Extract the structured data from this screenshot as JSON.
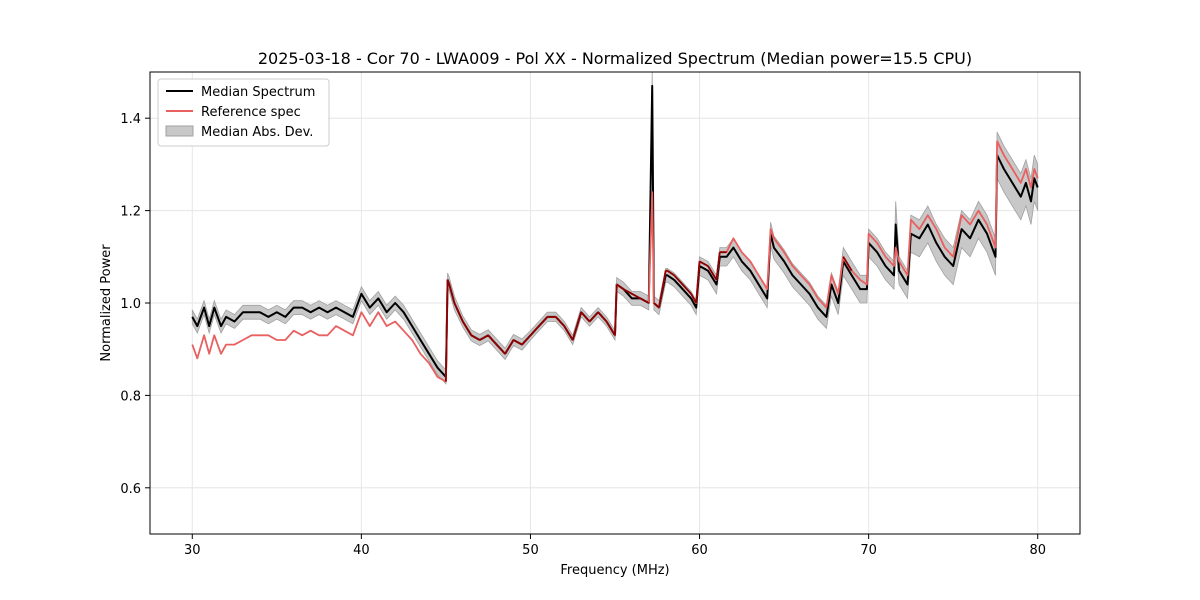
{
  "chart_data": {
    "type": "line",
    "title": "2025-03-18 - Cor 70 - LWA009 - Pol XX - Normalized Spectrum (Median power=15.5 CPU)",
    "xlabel": "Frequency (MHz)",
    "ylabel": "Normalized Power",
    "xlim": [
      27.5,
      82.5
    ],
    "ylim": [
      0.5,
      1.5
    ],
    "xticks": [
      30,
      40,
      50,
      60,
      70,
      80
    ],
    "yticks": [
      0.6,
      0.8,
      1.0,
      1.2,
      1.4
    ],
    "xtick_labels": [
      "30",
      "40",
      "50",
      "60",
      "70",
      "80"
    ],
    "ytick_labels": [
      "0.6",
      "0.8",
      "1.0",
      "1.2",
      "1.4"
    ],
    "grid": true,
    "legend_position": "top-left",
    "colors": {
      "median": "#000000",
      "reference": "#e8605f",
      "mad_fill": "#c8c8c8",
      "mad_edge": "#a0a0a0",
      "overlap": "#8b0000"
    },
    "series": [
      {
        "name": "Median Spectrum",
        "x": [
          30.0,
          30.3,
          30.7,
          31.0,
          31.3,
          31.7,
          32.0,
          32.5,
          33.0,
          33.5,
          34.0,
          34.5,
          35.0,
          35.5,
          36.0,
          36.5,
          37.0,
          37.5,
          38.0,
          38.5,
          39.0,
          39.5,
          40.0,
          40.5,
          41.0,
          41.5,
          42.0,
          42.5,
          43.0,
          43.5,
          44.0,
          44.5,
          45.0,
          45.1,
          45.2,
          45.5,
          46.0,
          46.5,
          47.0,
          47.5,
          48.0,
          48.5,
          49.0,
          49.5,
          50.0,
          50.5,
          51.0,
          51.5,
          52.0,
          52.5,
          53.0,
          53.5,
          54.0,
          54.5,
          55.0,
          55.1,
          55.5,
          56.0,
          56.5,
          57.0,
          57.2,
          57.3,
          57.6,
          58.0,
          58.1,
          58.5,
          59.0,
          59.5,
          59.8,
          60.0,
          60.5,
          61.0,
          61.2,
          61.6,
          62.0,
          62.5,
          63.0,
          63.5,
          64.0,
          64.2,
          64.4,
          65.0,
          65.5,
          66.0,
          66.5,
          67.0,
          67.5,
          67.8,
          68.2,
          68.5,
          69.0,
          69.5,
          69.9,
          70.0,
          70.5,
          71.0,
          71.5,
          71.6,
          71.8,
          72.3,
          72.5,
          73.0,
          73.5,
          74.0,
          74.5,
          75.0,
          75.5,
          76.0,
          76.5,
          77.0,
          77.5,
          77.6,
          78.0,
          78.5,
          79.0,
          79.3,
          79.6,
          79.8,
          80.0
        ],
        "values": [
          0.97,
          0.95,
          0.99,
          0.95,
          0.99,
          0.95,
          0.97,
          0.96,
          0.98,
          0.98,
          0.98,
          0.97,
          0.98,
          0.97,
          0.99,
          0.99,
          0.98,
          0.99,
          0.98,
          0.99,
          0.98,
          0.97,
          1.02,
          0.99,
          1.01,
          0.98,
          1.0,
          0.98,
          0.95,
          0.92,
          0.89,
          0.86,
          0.84,
          1.05,
          1.04,
          1.0,
          0.96,
          0.93,
          0.92,
          0.93,
          0.91,
          0.89,
          0.92,
          0.91,
          0.93,
          0.95,
          0.97,
          0.97,
          0.95,
          0.92,
          0.98,
          0.96,
          0.98,
          0.96,
          0.93,
          1.04,
          1.03,
          1.01,
          1.01,
          1.0,
          1.47,
          1.0,
          0.99,
          1.06,
          1.06,
          1.05,
          1.03,
          1.01,
          0.99,
          1.08,
          1.07,
          1.04,
          1.1,
          1.1,
          1.12,
          1.09,
          1.07,
          1.04,
          1.01,
          1.15,
          1.12,
          1.09,
          1.06,
          1.04,
          1.02,
          0.99,
          0.97,
          1.04,
          1.0,
          1.09,
          1.06,
          1.03,
          1.03,
          1.13,
          1.11,
          1.08,
          1.06,
          1.17,
          1.07,
          1.04,
          1.15,
          1.14,
          1.17,
          1.13,
          1.1,
          1.08,
          1.16,
          1.14,
          1.18,
          1.15,
          1.1,
          1.32,
          1.29,
          1.26,
          1.23,
          1.26,
          1.22,
          1.27,
          1.25
        ]
      },
      {
        "name": "Reference spec",
        "x": [
          30.0,
          30.3,
          30.7,
          31.0,
          31.3,
          31.7,
          32.0,
          32.5,
          33.0,
          33.5,
          34.0,
          34.5,
          35.0,
          35.5,
          36.0,
          36.5,
          37.0,
          37.5,
          38.0,
          38.5,
          39.0,
          39.5,
          40.0,
          40.5,
          41.0,
          41.5,
          42.0,
          42.5,
          43.0,
          43.5,
          44.0,
          44.5,
          45.0,
          45.1,
          45.2,
          45.5,
          46.0,
          46.5,
          47.0,
          47.5,
          48.0,
          48.5,
          49.0,
          49.5,
          50.0,
          50.5,
          51.0,
          51.5,
          52.0,
          52.5,
          53.0,
          53.5,
          54.0,
          54.5,
          55.0,
          55.1,
          55.5,
          56.0,
          56.5,
          57.0,
          57.2,
          57.3,
          57.6,
          58.0,
          58.1,
          58.5,
          59.0,
          59.5,
          59.8,
          60.0,
          60.5,
          61.0,
          61.2,
          61.6,
          62.0,
          62.5,
          63.0,
          63.5,
          64.0,
          64.2,
          64.4,
          65.0,
          65.5,
          66.0,
          66.5,
          67.0,
          67.5,
          67.8,
          68.2,
          68.5,
          69.0,
          69.5,
          69.9,
          70.0,
          70.5,
          71.0,
          71.5,
          71.6,
          71.8,
          72.3,
          72.5,
          73.0,
          73.5,
          74.0,
          74.5,
          75.0,
          75.5,
          76.0,
          76.5,
          77.0,
          77.5,
          77.6,
          78.0,
          78.5,
          79.0,
          79.3,
          79.6,
          79.8,
          80.0
        ],
        "values": [
          0.91,
          0.88,
          0.93,
          0.89,
          0.93,
          0.89,
          0.91,
          0.91,
          0.92,
          0.93,
          0.93,
          0.93,
          0.92,
          0.92,
          0.94,
          0.93,
          0.94,
          0.93,
          0.93,
          0.95,
          0.94,
          0.93,
          0.98,
          0.95,
          0.98,
          0.95,
          0.96,
          0.94,
          0.92,
          0.89,
          0.87,
          0.84,
          0.83,
          1.05,
          1.04,
          1.0,
          0.96,
          0.93,
          0.92,
          0.93,
          0.91,
          0.89,
          0.92,
          0.91,
          0.93,
          0.95,
          0.97,
          0.97,
          0.95,
          0.92,
          0.98,
          0.96,
          0.98,
          0.96,
          0.93,
          1.04,
          1.03,
          1.02,
          1.01,
          1.0,
          1.24,
          1.0,
          0.99,
          1.07,
          1.07,
          1.06,
          1.04,
          1.02,
          1.0,
          1.09,
          1.08,
          1.05,
          1.11,
          1.11,
          1.14,
          1.11,
          1.09,
          1.06,
          1.03,
          1.16,
          1.14,
          1.11,
          1.08,
          1.06,
          1.04,
          1.01,
          0.99,
          1.06,
          1.02,
          1.1,
          1.07,
          1.05,
          1.04,
          1.15,
          1.13,
          1.1,
          1.08,
          1.12,
          1.09,
          1.06,
          1.18,
          1.16,
          1.19,
          1.16,
          1.12,
          1.1,
          1.19,
          1.17,
          1.2,
          1.17,
          1.12,
          1.35,
          1.32,
          1.29,
          1.26,
          1.29,
          1.25,
          1.29,
          1.27
        ]
      },
      {
        "name": "Median Abs. Dev.",
        "type": "band",
        "values": [
          0.015,
          0.015,
          0.015,
          0.015,
          0.015,
          0.015,
          0.015,
          0.015,
          0.015,
          0.015,
          0.015,
          0.015,
          0.015,
          0.015,
          0.015,
          0.015,
          0.015,
          0.015,
          0.015,
          0.015,
          0.015,
          0.015,
          0.015,
          0.015,
          0.015,
          0.015,
          0.015,
          0.015,
          0.015,
          0.015,
          0.015,
          0.015,
          0.015,
          0.015,
          0.015,
          0.015,
          0.012,
          0.012,
          0.012,
          0.012,
          0.012,
          0.012,
          0.012,
          0.012,
          0.01,
          0.01,
          0.01,
          0.01,
          0.01,
          0.01,
          0.01,
          0.01,
          0.01,
          0.01,
          0.01,
          0.015,
          0.015,
          0.015,
          0.015,
          0.015,
          0.03,
          0.015,
          0.015,
          0.015,
          0.015,
          0.015,
          0.015,
          0.015,
          0.015,
          0.02,
          0.02,
          0.02,
          0.02,
          0.02,
          0.02,
          0.02,
          0.02,
          0.02,
          0.02,
          0.025,
          0.025,
          0.025,
          0.025,
          0.025,
          0.025,
          0.025,
          0.025,
          0.025,
          0.025,
          0.03,
          0.03,
          0.03,
          0.03,
          0.03,
          0.03,
          0.03,
          0.03,
          0.05,
          0.03,
          0.03,
          0.04,
          0.04,
          0.04,
          0.04,
          0.04,
          0.04,
          0.04,
          0.04,
          0.04,
          0.04,
          0.04,
          0.05,
          0.05,
          0.05,
          0.05,
          0.05,
          0.05,
          0.05,
          0.05
        ]
      }
    ]
  }
}
